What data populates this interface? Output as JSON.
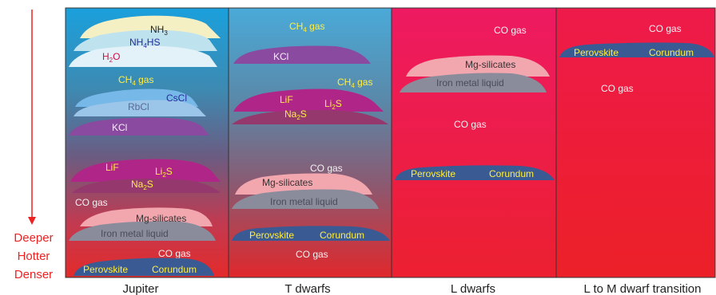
{
  "colors": {
    "red_axis": "#ee2222",
    "yellow_text": "#ffee44",
    "white_text": "#f2f2f2",
    "dark_text": "#222222",
    "blue_text": "#2a2a9a",
    "red_text": "#cc1144"
  },
  "axis": {
    "label_line1": "Deeper",
    "label_line2": "Hotter",
    "label_line3": "Denser"
  },
  "panels": [
    {
      "label": "Jupiter",
      "nh3": "NH",
      "nh3_sub": "3",
      "nh4hs_a": "NH",
      "nh4hs_sub": "4",
      "nh4hs_b": "HS",
      "h2o_a": "H",
      "h2o_sub": "2",
      "h2o_b": "O",
      "ch4_a": "CH",
      "ch4_sub": "4",
      "ch4_b": " gas",
      "cscl": "CsCl",
      "rbcl": "RbCl",
      "kcl": "KCl",
      "lif": "LiF",
      "li2s_a": "Li",
      "li2s_sub": "2",
      "li2s_b": "S",
      "na2s_a": "Na",
      "na2s_sub": "2",
      "na2s_b": "S",
      "co_gas_1": "CO gas",
      "mg_silicates": "Mg-silicates",
      "iron_liquid": "Iron metal liquid",
      "co_gas_2": "CO gas",
      "perovskite": "Perovskite",
      "corundum": "Corundum"
    },
    {
      "label": "T dwarfs",
      "ch4_top_a": "CH",
      "ch4_top_sub": "4",
      "ch4_top_b": " gas",
      "kcl": "KCl",
      "ch4_mid_a": "CH",
      "ch4_mid_sub": "4",
      "ch4_mid_b": " gas",
      "lif": "LiF",
      "li2s_a": "Li",
      "li2s_sub": "2",
      "li2s_b": "S",
      "na2s_a": "Na",
      "na2s_sub": "2",
      "na2s_b": "S",
      "co_gas_1": "CO gas",
      "mg_silicates": "Mg-silicates",
      "iron_liquid": "Iron metal liquid",
      "perovskite": "Perovskite",
      "corundum": "Corundum",
      "co_gas_2": "CO gas"
    },
    {
      "label": "L dwarfs",
      "co_gas_1": "CO gas",
      "mg_silicates": "Mg-silicates",
      "iron_liquid": "Iron metal liquid",
      "co_gas_2": "CO gas",
      "perovskite": "Perovskite",
      "corundum": "Corundum"
    },
    {
      "label": "L to M dwarf transition",
      "co_gas_1": "CO gas",
      "perovskite": "Perovskite",
      "corundum": "Corundum",
      "co_gas_2": "CO gas"
    }
  ]
}
